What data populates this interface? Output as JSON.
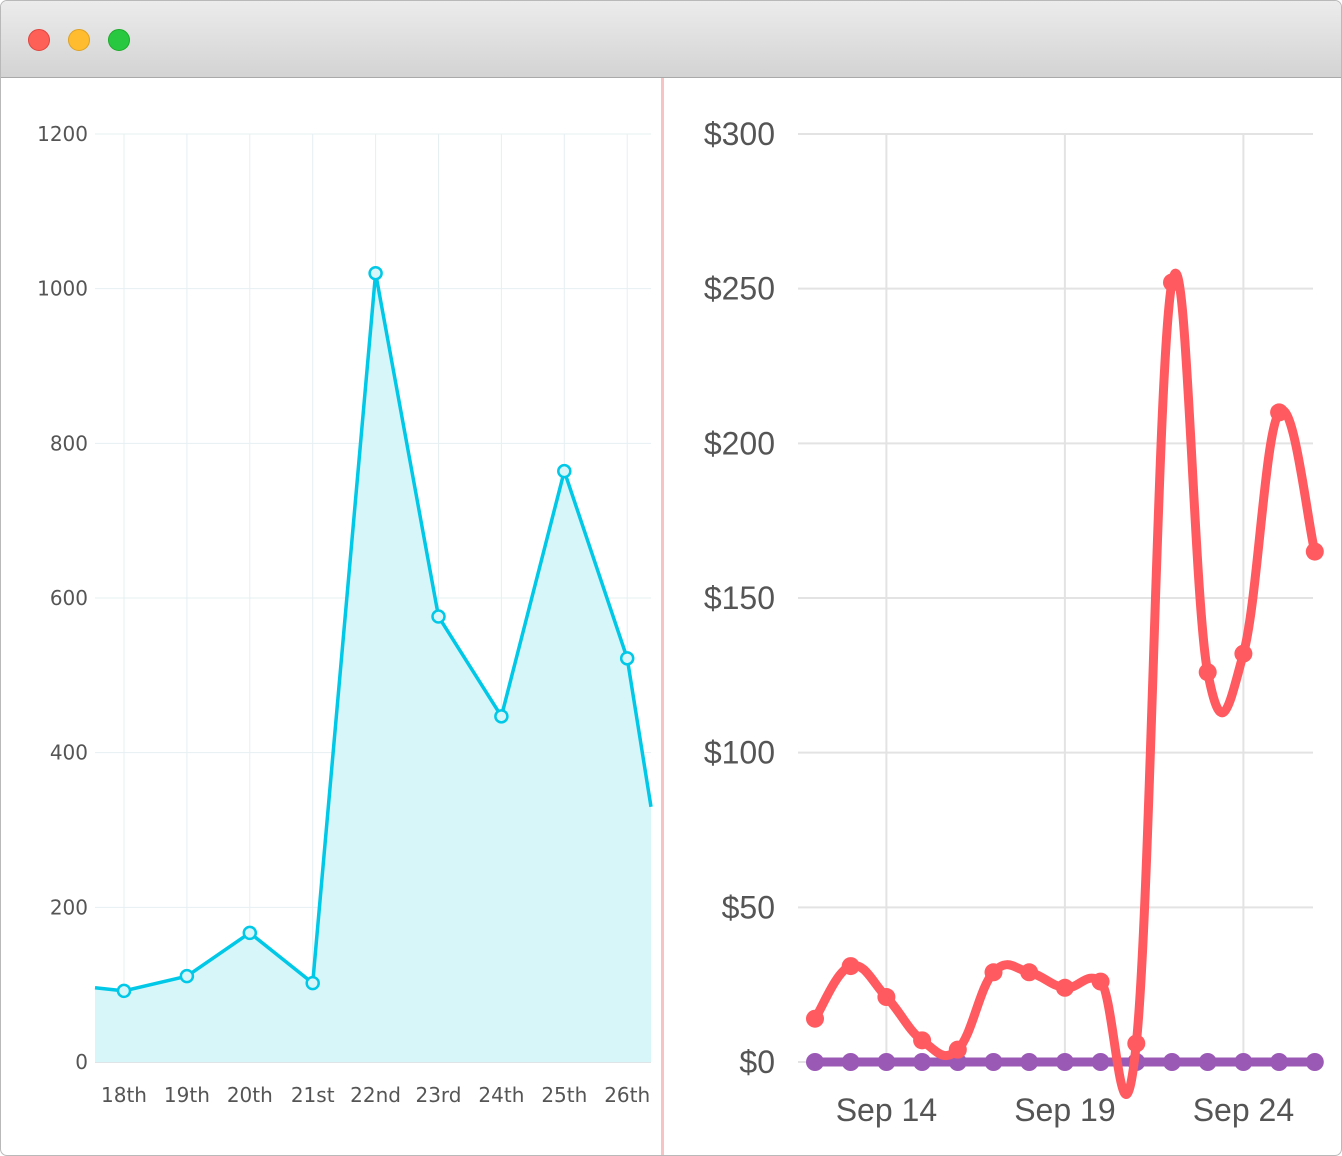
{
  "window": {
    "controls": [
      "close",
      "minimize",
      "zoom"
    ]
  },
  "chart_data": [
    {
      "type": "area",
      "title": "",
      "xlabel": "",
      "ylabel": "",
      "categories": [
        "18th",
        "19th",
        "20th",
        "21st",
        "22nd",
        "23rd",
        "24th",
        "25th",
        "26th"
      ],
      "values": [
        92,
        111,
        167,
        102,
        1020,
        576,
        447,
        764,
        522
      ],
      "edge_values": {
        "left": 96,
        "right": 330
      },
      "yticks": [
        0,
        200,
        400,
        600,
        800,
        1000,
        1200
      ],
      "ylim": [
        0,
        1200
      ],
      "grid": true,
      "colors": {
        "line": "#00c8e6",
        "fill": "#d7f6fa",
        "grid": "#e6eff2",
        "tick_text": "#555555"
      }
    },
    {
      "type": "line",
      "title": "",
      "xlabel": "",
      "ylabel": "",
      "x": [
        "Sep 12",
        "Sep 13",
        "Sep 14",
        "Sep 15",
        "Sep 16",
        "Sep 17",
        "Sep 18",
        "Sep 19",
        "Sep 20",
        "Sep 21",
        "Sep 22",
        "Sep 23",
        "Sep 24",
        "Sep 25",
        "Sep 26"
      ],
      "xticks": [
        "Sep 14",
        "Sep 19",
        "Sep 24"
      ],
      "yticks": [
        "$0",
        "$50",
        "$100",
        "$150",
        "$200",
        "$250",
        "$300"
      ],
      "ylim": [
        0,
        300
      ],
      "grid": true,
      "series": [
        {
          "values": [
            14,
            31,
            21,
            7,
            4,
            29,
            29,
            24,
            26,
            6,
            252,
            126,
            132,
            210,
            165
          ],
          "color": "#ff5a5f"
        },
        {
          "values": [
            0,
            0,
            0,
            0,
            0,
            0,
            0,
            0,
            0,
            0,
            0,
            0,
            0,
            0,
            0
          ],
          "color": "#9b59b6"
        }
      ],
      "colors": {
        "grid": "#e3e3e3",
        "tick_text": "#555555"
      }
    }
  ]
}
